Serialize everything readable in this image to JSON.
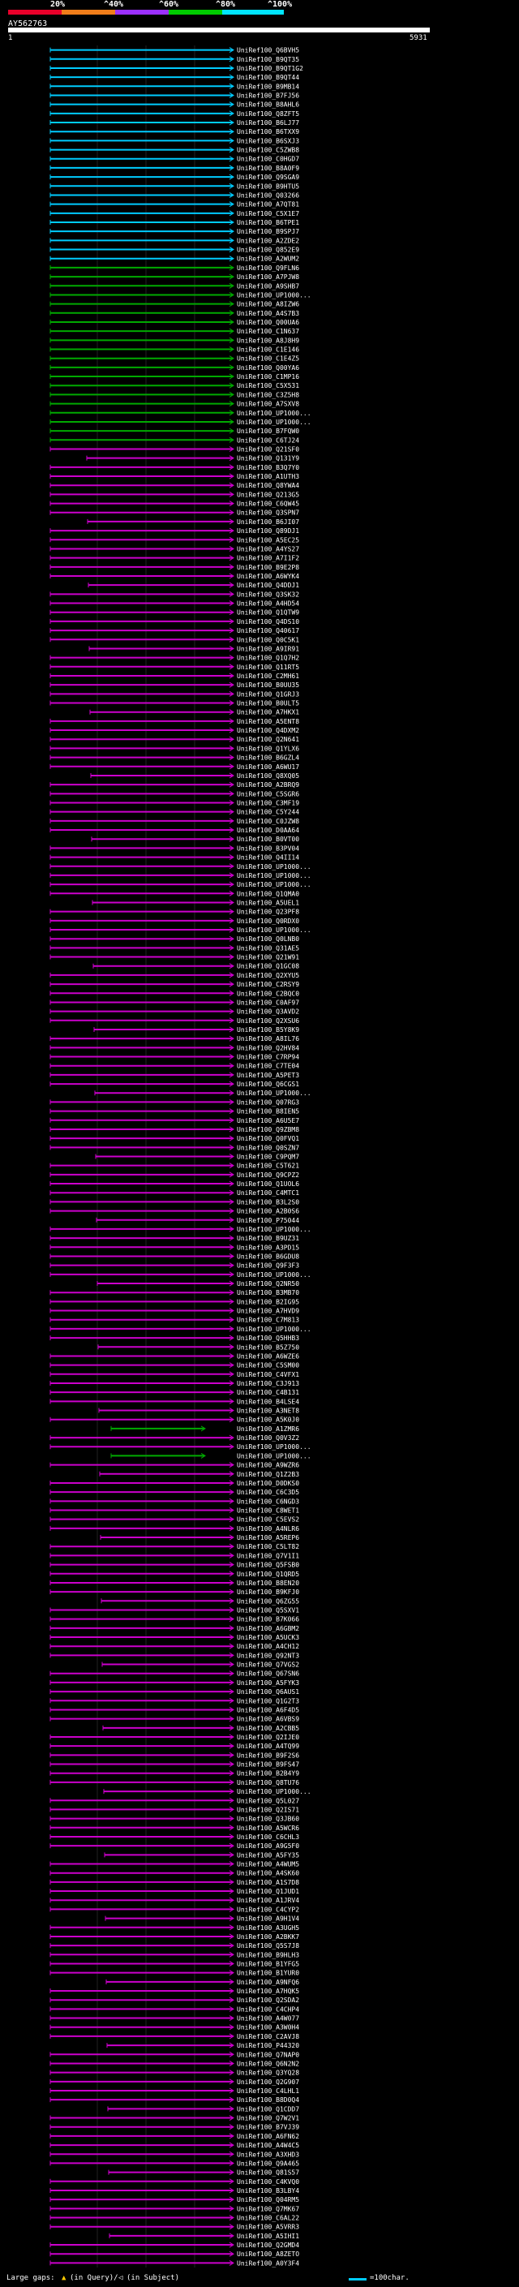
{
  "legend": {
    "labels": [
      "20%",
      "^40%",
      "^60%",
      "^80%",
      "^100%"
    ],
    "colors": [
      "#e8002a",
      "#f07d1a",
      "#9b30ff",
      "#00cc00",
      "#00e5ff"
    ]
  },
  "query": {
    "name": "AY562763",
    "start_tick": "1",
    "end_tick": "5931"
  },
  "hits_colors": {
    "cyan": "#00ccff",
    "green": "#00aa00",
    "magenta": "#cc00cc"
  },
  "hits": [
    {
      "label": "UniRef100_Q6BVH5",
      "color": "cyan"
    },
    {
      "label": "UniRef100_B9QT35",
      "color": "cyan"
    },
    {
      "label": "UniRef100_B9QT1G2",
      "color": "cyan"
    },
    {
      "label": "UniRef100_B9QT44",
      "color": "cyan"
    },
    {
      "label": "UniRef100_B9MB14",
      "color": "cyan"
    },
    {
      "label": "UniRef100_B7FJ56",
      "color": "cyan"
    },
    {
      "label": "UniRef100_B8AHL6",
      "color": "cyan"
    },
    {
      "label": "UniRef100_Q8ZFT5",
      "color": "cyan"
    },
    {
      "label": "UniRef100_B6LJ77",
      "color": "cyan"
    },
    {
      "label": "UniRef100_B6TXX9",
      "color": "cyan"
    },
    {
      "label": "UniRef100_B6SXJ3",
      "color": "cyan"
    },
    {
      "label": "UniRef100_C5ZWB8",
      "color": "cyan"
    },
    {
      "label": "UniRef100_C0HGD7",
      "color": "cyan"
    },
    {
      "label": "UniRef100_B8A0F9",
      "color": "cyan"
    },
    {
      "label": "UniRef100_Q9SGA9",
      "color": "cyan"
    },
    {
      "label": "UniRef100_B9HTU5",
      "color": "cyan"
    },
    {
      "label": "UniRef100_Q03266",
      "color": "cyan"
    },
    {
      "label": "UniRef100_A7QT81",
      "color": "cyan"
    },
    {
      "label": "UniRef100_C5X1E7",
      "color": "cyan"
    },
    {
      "label": "UniRef100_B6TPE1",
      "color": "cyan"
    },
    {
      "label": "UniRef100_B9SPJ7",
      "color": "cyan"
    },
    {
      "label": "UniRef100_A2ZDE2",
      "color": "cyan"
    },
    {
      "label": "UniRef100_Q852E9",
      "color": "cyan"
    },
    {
      "label": "UniRef100_A2WUM2",
      "color": "cyan"
    },
    {
      "label": "UniRef100_Q9FLN6",
      "color": "green"
    },
    {
      "label": "UniRef100_A7PJW8",
      "color": "green"
    },
    {
      "label": "UniRef100_A9SHB7",
      "color": "green"
    },
    {
      "label": "UniRef100_UP1000...",
      "color": "green"
    },
    {
      "label": "UniRef100_A8IZW6",
      "color": "green"
    },
    {
      "label": "UniRef100_A4S7B3",
      "color": "green"
    },
    {
      "label": "UniRef100_Q00UA6",
      "color": "green"
    },
    {
      "label": "UniRef100_C1N637",
      "color": "green"
    },
    {
      "label": "UniRef100_A8J8H9",
      "color": "green"
    },
    {
      "label": "UniRef100_C1E146",
      "color": "green"
    },
    {
      "label": "UniRef100_C1E4Z5",
      "color": "green"
    },
    {
      "label": "UniRef100_Q00YA6",
      "color": "green"
    },
    {
      "label": "UniRef100_C1MP16",
      "color": "green"
    },
    {
      "label": "UniRef100_C5X531",
      "color": "green"
    },
    {
      "label": "UniRef100_C3Z5H8",
      "color": "green"
    },
    {
      "label": "UniRef100_A7SXV8",
      "color": "green"
    },
    {
      "label": "UniRef100_UP1000...",
      "color": "green"
    },
    {
      "label": "UniRef100_UP1000...",
      "color": "green"
    },
    {
      "label": "UniRef100_B7FQW0",
      "color": "green"
    },
    {
      "label": "UniRef100_C6TJ24",
      "color": "green"
    },
    {
      "label": "UniRef100_Q21SF0",
      "color": "magenta"
    },
    {
      "label": "UniRef100_Q131Y9",
      "color": "magenta"
    },
    {
      "label": "UniRef100_B3Q7Y0",
      "color": "magenta"
    },
    {
      "label": "UniRef100_A1UTH3",
      "color": "magenta"
    },
    {
      "label": "UniRef100_Q8YWA4",
      "color": "magenta"
    },
    {
      "label": "UniRef100_Q213G5",
      "color": "magenta"
    },
    {
      "label": "UniRef100_C6QW45",
      "color": "magenta"
    },
    {
      "label": "UniRef100_Q3SPN7",
      "color": "magenta"
    },
    {
      "label": "UniRef100_B6JI07",
      "color": "magenta"
    },
    {
      "label": "UniRef100_Q89DJ1",
      "color": "magenta"
    },
    {
      "label": "UniRef100_A5EC25",
      "color": "magenta"
    },
    {
      "label": "UniRef100_A4YS27",
      "color": "magenta"
    },
    {
      "label": "UniRef100_A7I1F2",
      "color": "magenta"
    },
    {
      "label": "UniRef100_B9E2P8",
      "color": "magenta"
    },
    {
      "label": "UniRef100_A6WYK4",
      "color": "magenta"
    },
    {
      "label": "UniRef100_Q4DDJ1",
      "color": "magenta"
    },
    {
      "label": "UniRef100_Q3SK32",
      "color": "magenta"
    },
    {
      "label": "UniRef100_A4HD54",
      "color": "magenta"
    },
    {
      "label": "UniRef100_Q1QTW9",
      "color": "magenta"
    },
    {
      "label": "UniRef100_Q4DS10",
      "color": "magenta"
    },
    {
      "label": "UniRef100_Q40617",
      "color": "magenta"
    },
    {
      "label": "UniRef100_Q0C5K1",
      "color": "magenta"
    },
    {
      "label": "UniRef100_A9IR91",
      "color": "magenta"
    },
    {
      "label": "UniRef100_Q1Q7H2",
      "color": "magenta"
    },
    {
      "label": "UniRef100_Q11RT5",
      "color": "magenta"
    },
    {
      "label": "UniRef100_C2MH61",
      "color": "magenta"
    },
    {
      "label": "UniRef100_B0UU35",
      "color": "magenta"
    },
    {
      "label": "UniRef100_Q1GRJ3",
      "color": "magenta"
    },
    {
      "label": "UniRef100_B0ULT5",
      "color": "magenta"
    },
    {
      "label": "UniRef100_A7HKX1",
      "color": "magenta"
    },
    {
      "label": "UniRef100_A5ENT8",
      "color": "magenta"
    },
    {
      "label": "UniRef100_Q4DXM2",
      "color": "magenta"
    },
    {
      "label": "UniRef100_Q2N641",
      "color": "magenta"
    },
    {
      "label": "UniRef100_Q1YLX6",
      "color": "magenta"
    },
    {
      "label": "UniRef100_B6GZL4",
      "color": "magenta"
    },
    {
      "label": "UniRef100_A6WU17",
      "color": "magenta"
    },
    {
      "label": "UniRef100_Q8XQ05",
      "color": "magenta"
    },
    {
      "label": "UniRef100_A2BRQ9",
      "color": "magenta"
    },
    {
      "label": "UniRef100_C5SGR6",
      "color": "magenta"
    },
    {
      "label": "UniRef100_C3MF19",
      "color": "magenta"
    },
    {
      "label": "UniRef100_C5Y244",
      "color": "magenta"
    },
    {
      "label": "UniRef100_C0JZW8",
      "color": "magenta"
    },
    {
      "label": "UniRef100_D0AA64",
      "color": "magenta"
    },
    {
      "label": "UniRef100_B0VT00",
      "color": "magenta"
    },
    {
      "label": "UniRef100_B3PV04",
      "color": "magenta"
    },
    {
      "label": "UniRef100_Q4II14",
      "color": "magenta"
    },
    {
      "label": "UniRef100_UP1000...",
      "color": "magenta"
    },
    {
      "label": "UniRef100_UP1000...",
      "color": "magenta"
    },
    {
      "label": "UniRef100_UP1000...",
      "color": "magenta"
    },
    {
      "label": "UniRef100_Q1QMA0",
      "color": "magenta"
    },
    {
      "label": "UniRef100_A5UEL1",
      "color": "magenta"
    },
    {
      "label": "UniRef100_Q23PF8",
      "color": "magenta"
    },
    {
      "label": "UniRef100_Q0RDX0",
      "color": "magenta"
    },
    {
      "label": "UniRef100_UP1000...",
      "color": "magenta"
    },
    {
      "label": "UniRef100_Q0LNB0",
      "color": "magenta"
    },
    {
      "label": "UniRef100_Q31AE5",
      "color": "magenta"
    },
    {
      "label": "UniRef100_Q21W91",
      "color": "magenta"
    },
    {
      "label": "UniRef100_Q1GC08",
      "color": "magenta"
    },
    {
      "label": "UniRef100_Q2XYU5",
      "color": "magenta"
    },
    {
      "label": "UniRef100_C2RSY9",
      "color": "magenta"
    },
    {
      "label": "UniRef100_C2BQC0",
      "color": "magenta"
    },
    {
      "label": "UniRef100_C0AF97",
      "color": "magenta"
    },
    {
      "label": "UniRef100_Q3AVD2",
      "color": "magenta"
    },
    {
      "label": "UniRef100_Q2XSU6",
      "color": "magenta"
    },
    {
      "label": "UniRef100_B5Y8K9",
      "color": "magenta"
    },
    {
      "label": "UniRef100_A8IL76",
      "color": "magenta"
    },
    {
      "label": "UniRef100_Q2HV84",
      "color": "magenta"
    },
    {
      "label": "UniRef100_C7RP94",
      "color": "magenta"
    },
    {
      "label": "UniRef100_C7TE04",
      "color": "magenta"
    },
    {
      "label": "UniRef100_A5PET3",
      "color": "magenta"
    },
    {
      "label": "UniRef100_Q6CGS1",
      "color": "magenta"
    },
    {
      "label": "UniRef100_UP1000...",
      "color": "magenta"
    },
    {
      "label": "UniRef100_Q07RG3",
      "color": "magenta"
    },
    {
      "label": "UniRef100_B8IEN5",
      "color": "magenta"
    },
    {
      "label": "UniRef100_A6U5E7",
      "color": "magenta"
    },
    {
      "label": "UniRef100_Q9ZBM8",
      "color": "magenta"
    },
    {
      "label": "UniRef100_Q0FVQ1",
      "color": "magenta"
    },
    {
      "label": "UniRef100_Q0SZN7",
      "color": "magenta"
    },
    {
      "label": "UniRef100_C9PQM7",
      "color": "magenta"
    },
    {
      "label": "UniRef100_C5T621",
      "color": "magenta"
    },
    {
      "label": "UniRef100_Q9CPZ2",
      "color": "magenta"
    },
    {
      "label": "UniRef100_Q1UOL6",
      "color": "magenta"
    },
    {
      "label": "UniRef100_C4MTC1",
      "color": "magenta"
    },
    {
      "label": "UniRef100_B3L2S0",
      "color": "magenta"
    },
    {
      "label": "UniRef100_A2B0S6",
      "color": "magenta"
    },
    {
      "label": "UniRef100_P75044",
      "color": "magenta"
    },
    {
      "label": "UniRef100_UP1000...",
      "color": "magenta"
    },
    {
      "label": "UniRef100_B9UZ31",
      "color": "magenta"
    },
    {
      "label": "UniRef100_A3PD15",
      "color": "magenta"
    },
    {
      "label": "UniRef100_B6GDU8",
      "color": "magenta"
    },
    {
      "label": "UniRef100_Q9F3F3",
      "color": "magenta"
    },
    {
      "label": "UniRef100_UP1000...",
      "color": "magenta"
    },
    {
      "label": "UniRef100_Q2NR50",
      "color": "magenta"
    },
    {
      "label": "UniRef100_B3MB70",
      "color": "magenta"
    },
    {
      "label": "UniRef100_B2IG95",
      "color": "magenta"
    },
    {
      "label": "UniRef100_A7HVD9",
      "color": "magenta"
    },
    {
      "label": "UniRef100_C7M813",
      "color": "magenta"
    },
    {
      "label": "UniRef100_UP1000...",
      "color": "magenta"
    },
    {
      "label": "UniRef100_Q5HHB3",
      "color": "magenta"
    },
    {
      "label": "UniRef100_B5Z750",
      "color": "magenta"
    },
    {
      "label": "UniRef100_A6WZE6",
      "color": "magenta"
    },
    {
      "label": "UniRef100_C5SM00",
      "color": "magenta"
    },
    {
      "label": "UniRef100_C4VFX1",
      "color": "magenta"
    },
    {
      "label": "UniRef100_C3J913",
      "color": "magenta"
    },
    {
      "label": "UniRef100_C4B131",
      "color": "magenta"
    },
    {
      "label": "UniRef100_B4LSE4",
      "color": "magenta"
    },
    {
      "label": "UniRef100_A3NET8",
      "color": "magenta"
    },
    {
      "label": "UniRef100_A5K0J0",
      "color": "magenta"
    },
    {
      "label": "UniRef100_A1ZMR6",
      "color": "green"
    },
    {
      "label": "UniRef100_Q0V3Z2",
      "color": "magenta"
    },
    {
      "label": "UniRef100_UP1000...",
      "color": "magenta"
    },
    {
      "label": "UniRef100_UP1000...",
      "color": "green"
    },
    {
      "label": "UniRef100_A9WZR6",
      "color": "magenta"
    },
    {
      "label": "UniRef100_Q1Z2B3",
      "color": "magenta"
    },
    {
      "label": "UniRef100_D0DKS0",
      "color": "magenta"
    },
    {
      "label": "UniRef100_C6C3D5",
      "color": "magenta"
    },
    {
      "label": "UniRef100_C6NGD3",
      "color": "magenta"
    },
    {
      "label": "UniRef100_C8WET1",
      "color": "magenta"
    },
    {
      "label": "UniRef100_C5EVS2",
      "color": "magenta"
    },
    {
      "label": "UniRef100_A4NLR6",
      "color": "magenta"
    },
    {
      "label": "UniRef100_A5REP6",
      "color": "magenta"
    },
    {
      "label": "UniRef100_C5LT82",
      "color": "magenta"
    },
    {
      "label": "UniRef100_Q7V1I1",
      "color": "magenta"
    },
    {
      "label": "UniRef100_Q5FSB0",
      "color": "magenta"
    },
    {
      "label": "UniRef100_Q1QRD5",
      "color": "magenta"
    },
    {
      "label": "UniRef100_B8EN20",
      "color": "magenta"
    },
    {
      "label": "UniRef100_B9KFJ0",
      "color": "magenta"
    },
    {
      "label": "UniRef100_Q6ZG55",
      "color": "magenta"
    },
    {
      "label": "UniRef100_Q5SXV1",
      "color": "magenta"
    },
    {
      "label": "UniRef100_B7K066",
      "color": "magenta"
    },
    {
      "label": "UniRef100_A6GBM2",
      "color": "magenta"
    },
    {
      "label": "UniRef100_A5UCK3",
      "color": "magenta"
    },
    {
      "label": "UniRef100_A4CH12",
      "color": "magenta"
    },
    {
      "label": "UniRef100_Q92NT3",
      "color": "magenta"
    },
    {
      "label": "UniRef100_Q7VGS2",
      "color": "magenta"
    },
    {
      "label": "UniRef100_Q67SN6",
      "color": "magenta"
    },
    {
      "label": "UniRef100_A5FYK3",
      "color": "magenta"
    },
    {
      "label": "UniRef100_Q6AUS1",
      "color": "magenta"
    },
    {
      "label": "UniRef100_Q1G2T3",
      "color": "magenta"
    },
    {
      "label": "UniRef100_A6F4D5",
      "color": "magenta"
    },
    {
      "label": "UniRef100_A6VBS9",
      "color": "magenta"
    },
    {
      "label": "UniRef100_A2CBB5",
      "color": "magenta"
    },
    {
      "label": "UniRef100_Q2IJE0",
      "color": "magenta"
    },
    {
      "label": "UniRef100_A4TQ99",
      "color": "magenta"
    },
    {
      "label": "UniRef100_B9F2S6",
      "color": "magenta"
    },
    {
      "label": "UniRef100_B9FS47",
      "color": "magenta"
    },
    {
      "label": "UniRef100_B2B4Y9",
      "color": "magenta"
    },
    {
      "label": "UniRef100_Q8TU76",
      "color": "magenta"
    },
    {
      "label": "UniRef100_UP1000...",
      "color": "magenta"
    },
    {
      "label": "UniRef100_Q5L027",
      "color": "magenta"
    },
    {
      "label": "UniRef100_Q2IS71",
      "color": "magenta"
    },
    {
      "label": "UniRef100_Q3JB60",
      "color": "magenta"
    },
    {
      "label": "UniRef100_A5WCR6",
      "color": "magenta"
    },
    {
      "label": "UniRef100_C6CHL3",
      "color": "magenta"
    },
    {
      "label": "UniRef100_A9G5F0",
      "color": "magenta"
    },
    {
      "label": "UniRef100_A5FY35",
      "color": "magenta"
    },
    {
      "label": "UniRef100_A4WUM5",
      "color": "magenta"
    },
    {
      "label": "UniRef100_A4SK60",
      "color": "magenta"
    },
    {
      "label": "UniRef100_A1S7D8",
      "color": "magenta"
    },
    {
      "label": "UniRef100_Q1JUD1",
      "color": "magenta"
    },
    {
      "label": "UniRef100_A1JRV4",
      "color": "magenta"
    },
    {
      "label": "UniRef100_C4CYP2",
      "color": "magenta"
    },
    {
      "label": "UniRef100_A9H1V4",
      "color": "magenta"
    },
    {
      "label": "UniRef100_A3UGH5",
      "color": "magenta"
    },
    {
      "label": "UniRef100_A2BKK7",
      "color": "magenta"
    },
    {
      "label": "UniRef100_Q5S7J8",
      "color": "magenta"
    },
    {
      "label": "UniRef100_B9HLH3",
      "color": "magenta"
    },
    {
      "label": "UniRef100_B1YFG5",
      "color": "magenta"
    },
    {
      "label": "UniRef100_B1YUR0",
      "color": "magenta"
    },
    {
      "label": "UniRef100_A9NFQ6",
      "color": "magenta"
    },
    {
      "label": "UniRef100_A7HQK5",
      "color": "magenta"
    },
    {
      "label": "UniRef100_Q2SDA2",
      "color": "magenta"
    },
    {
      "label": "UniRef100_C4CHP4",
      "color": "magenta"
    },
    {
      "label": "UniRef100_A4W077",
      "color": "magenta"
    },
    {
      "label": "UniRef100_A3W0H4",
      "color": "magenta"
    },
    {
      "label": "UniRef100_C2AVJ8",
      "color": "magenta"
    },
    {
      "label": "UniRef100_P44320",
      "color": "magenta"
    },
    {
      "label": "UniRef100_Q7NAP0",
      "color": "magenta"
    },
    {
      "label": "UniRef100_Q6N2N2",
      "color": "magenta"
    },
    {
      "label": "UniRef100_Q3YQ28",
      "color": "magenta"
    },
    {
      "label": "UniRef100_Q2G907",
      "color": "magenta"
    },
    {
      "label": "UniRef100_C4LHL1",
      "color": "magenta"
    },
    {
      "label": "UniRef100_B8D0Q4",
      "color": "magenta"
    },
    {
      "label": "UniRef100_Q1CDD7",
      "color": "magenta"
    },
    {
      "label": "UniRef100_Q7W2V1",
      "color": "magenta"
    },
    {
      "label": "UniRef100_B7VJ39",
      "color": "magenta"
    },
    {
      "label": "UniRef100_A6FN62",
      "color": "magenta"
    },
    {
      "label": "UniRef100_A4W4C5",
      "color": "magenta"
    },
    {
      "label": "UniRef100_A3XHD3",
      "color": "magenta"
    },
    {
      "label": "UniRef100_Q9A465",
      "color": "magenta"
    },
    {
      "label": "UniRef100_Q81S57",
      "color": "magenta"
    },
    {
      "label": "UniRef100_C4KVQ0",
      "color": "magenta"
    },
    {
      "label": "UniRef100_B3LBY4",
      "color": "magenta"
    },
    {
      "label": "UniRef100_Q04RM5",
      "color": "magenta"
    },
    {
      "label": "UniRef100_Q7MK67",
      "color": "magenta"
    },
    {
      "label": "UniRef100_C6AL22",
      "color": "magenta"
    },
    {
      "label": "UniRef100_A5VRR3",
      "color": "magenta"
    },
    {
      "label": "UniRef100_A5IHI1",
      "color": "magenta"
    },
    {
      "label": "UniRef100_Q2GMD4",
      "color": "magenta"
    },
    {
      "label": "UniRef100_A8ZETO",
      "color": "magenta"
    },
    {
      "label": "UniRef100_A0Y3F4",
      "color": "magenta"
    }
  ],
  "footer": {
    "large_gaps_label": "Large gaps:",
    "in_query_label": "(in Query)/",
    "in_subject_label": "(in Subject)",
    "scale_label": "=100char."
  }
}
